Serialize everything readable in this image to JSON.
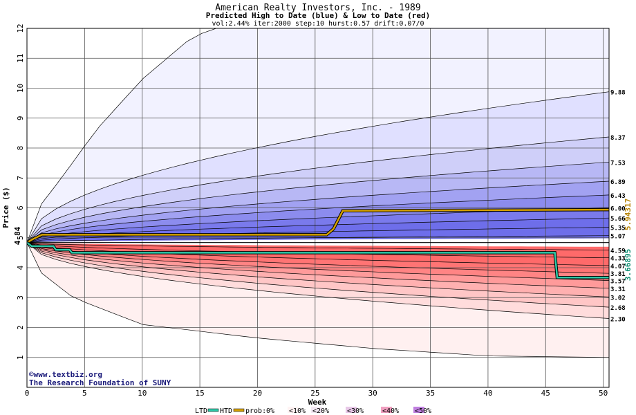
{
  "chart_data": {
    "type": "area",
    "title": "American Realty Investors, Inc. - 1989",
    "subtitle": "Predicted High to Date (blue) &  Low to Date (red)",
    "params": "vol:2.44% iter:2000 step:10 hurst:0.57 drift:0.07/0",
    "xlabel": "Week",
    "ylabel": "Price ($)",
    "xlim": [
      0,
      50.5
    ],
    "ylim": [
      0,
      12
    ],
    "x_ticks": [
      0,
      5,
      10,
      15,
      20,
      25,
      30,
      35,
      40,
      45,
      50
    ],
    "y_ticks": [
      1,
      2,
      3,
      4,
      5,
      6,
      7,
      8,
      9,
      10,
      11,
      12
    ],
    "grid": true,
    "start_price": 4.84,
    "start_label": "4.84",
    "high_quantiles": [
      9.88,
      8.37,
      7.53,
      6.89,
      6.43,
      6.0,
      5.66,
      5.35,
      5.07
    ],
    "high_labels": [
      "9.88",
      "8.37",
      "7.53",
      "6.89",
      "6.43",
      "6.00",
      "5.66",
      "5.35",
      "5.07"
    ],
    "low_quantiles": [
      4.59,
      4.33,
      4.07,
      3.81,
      3.57,
      3.31,
      3.02,
      2.68,
      2.3
    ],
    "low_labels": [
      "4.59",
      "4.33",
      "4.07",
      "3.81",
      "3.57",
      "3.31",
      "3.02",
      "2.68",
      "2.30"
    ],
    "outer_high": [
      [
        0,
        4.84
      ],
      [
        1,
        6.0
      ],
      [
        3,
        7.0
      ],
      [
        6,
        8.6
      ],
      [
        10,
        10.3
      ],
      [
        14,
        11.6
      ],
      [
        16,
        12.0
      ]
    ],
    "outer_low": [
      [
        0,
        4.84
      ],
      [
        1,
        3.9
      ],
      [
        4,
        3.0
      ],
      [
        10,
        2.1
      ],
      [
        20,
        1.65
      ],
      [
        30,
        1.3
      ],
      [
        40,
        1.05
      ],
      [
        50.5,
        1.0
      ]
    ],
    "htd": {
      "name": "HTD",
      "color": "#d4a000",
      "final_value": 5.94317,
      "final_label": "5.94317",
      "points": [
        [
          0,
          4.84
        ],
        [
          0.5,
          4.95
        ],
        [
          1.3,
          5.1
        ],
        [
          26,
          5.1
        ],
        [
          26.6,
          5.3
        ],
        [
          27.4,
          5.9
        ],
        [
          50.5,
          5.94
        ]
      ]
    },
    "ltd": {
      "name": "LTD",
      "color": "#2ec9a8",
      "final_value": 3.66895,
      "final_label": "3.66895",
      "points": [
        [
          0,
          4.84
        ],
        [
          0.4,
          4.72
        ],
        [
          2.3,
          4.72
        ],
        [
          2.5,
          4.6
        ],
        [
          3.7,
          4.6
        ],
        [
          3.9,
          4.5
        ],
        [
          45.8,
          4.5
        ],
        [
          46.0,
          3.67
        ],
        [
          50.5,
          3.67
        ]
      ]
    },
    "midline": [
      [
        0,
        4.84
      ],
      [
        50.5,
        4.84
      ]
    ],
    "legend": {
      "ltd": "LTD",
      "htd": "HTD",
      "prob": "prob:",
      "bins": [
        "0%",
        "<10%",
        "<20%",
        "<30%",
        "<40%",
        "<50%"
      ]
    },
    "watermark": [
      "©www.textbiz.org",
      "The Research Foundation of SUNY"
    ]
  },
  "colors": {
    "blue_bands": [
      "#f2f2ff",
      "#e0e0ff",
      "#cfcff9",
      "#b8b8f5",
      "#a2a2f2",
      "#8c8cee",
      "#7a7aec",
      "#6e6eea"
    ],
    "red_bands": [
      "#fff0f0",
      "#ffdcdc",
      "#ffc6c6",
      "#ffb0b0",
      "#ff9a9a",
      "#ff8484",
      "#ff7474",
      "#ff6a6a"
    ],
    "high_text": "#b8860b",
    "low_text": "#0f8f75",
    "grid": "#555555"
  }
}
